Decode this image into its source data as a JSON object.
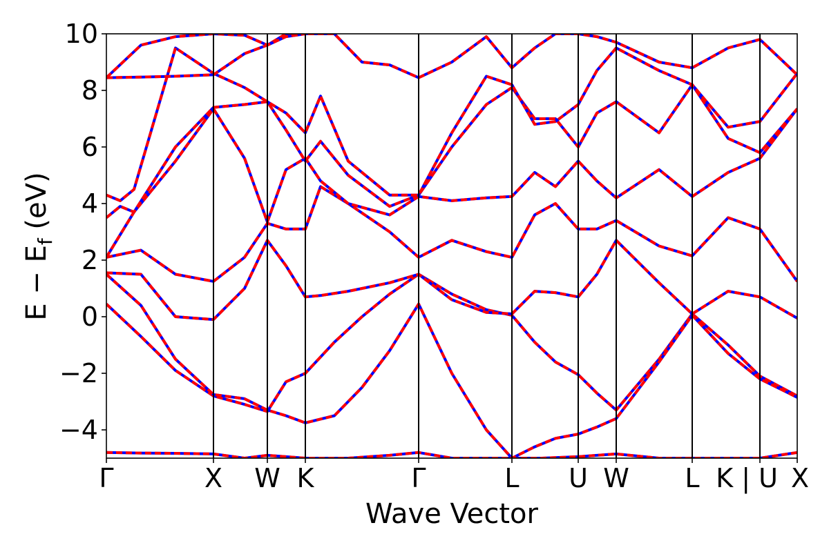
{
  "chart_data": {
    "type": "line",
    "xlabel": "Wave Vector",
    "ylabel": {
      "parts": [
        "E − E",
        "f",
        " (eV)"
      ]
    },
    "ylim": [
      -5,
      10
    ],
    "xlim": [
      0,
      1
    ],
    "grid": false,
    "legend": "none",
    "yticks": [
      {
        "value": -4,
        "label": "−4"
      },
      {
        "value": -2,
        "label": "−2"
      },
      {
        "value": 0,
        "label": "0"
      },
      {
        "value": 2,
        "label": "2"
      },
      {
        "value": 4,
        "label": "4"
      },
      {
        "value": 6,
        "label": "6"
      },
      {
        "value": 8,
        "label": "8"
      },
      {
        "value": 10,
        "label": "10"
      }
    ],
    "kpoints": [
      {
        "label": "Γ",
        "x": 0.0
      },
      {
        "label": "X",
        "x": 0.155
      },
      {
        "label": "W",
        "x": 0.233
      },
      {
        "label": "K",
        "x": 0.288
      },
      {
        "label": "Γ",
        "x": 0.452
      },
      {
        "label": "L",
        "x": 0.587
      },
      {
        "label": "U",
        "x": 0.683
      },
      {
        "label": "W",
        "x": 0.738
      },
      {
        "label": "L",
        "x": 0.848
      },
      {
        "label": "K | U",
        "x": 0.946
      },
      {
        "label": "X",
        "x": 1.0
      }
    ],
    "kpoint_lines_x": [
      0.155,
      0.233,
      0.288,
      0.452,
      0.587,
      0.683,
      0.738,
      0.848,
      0.946
    ],
    "colors": {
      "series_a": "#0000ff",
      "series_b": "#ff0000",
      "kline": "#000000"
    },
    "bands": [
      {
        "x": [
          0.0,
          0.05,
          0.1,
          0.155,
          0.2,
          0.233,
          0.26,
          0.288,
          0.35,
          0.41,
          0.452,
          0.5,
          0.55,
          0.587,
          0.63,
          0.683,
          0.71,
          0.738,
          0.8,
          0.848,
          0.9,
          0.946,
          1.0
        ],
        "y": [
          -4.8,
          -4.82,
          -4.83,
          -4.85,
          -5.0,
          -4.9,
          -4.95,
          -5.0,
          -5.0,
          -4.9,
          -4.8,
          -5.0,
          -5.0,
          -5.0,
          -5.0,
          -4.95,
          -4.9,
          -4.85,
          -5.0,
          -5.0,
          -5.0,
          -5.0,
          -4.8
        ]
      },
      {
        "x": [
          0.0,
          0.05,
          0.1,
          0.155,
          0.2,
          0.233,
          0.26,
          0.288,
          0.33,
          0.37,
          0.41,
          0.452,
          0.5,
          0.55,
          0.587,
          0.62,
          0.65,
          0.683,
          0.71,
          0.738,
          0.8,
          0.848,
          0.9,
          0.946,
          1.0
        ],
        "y": [
          0.45,
          -0.7,
          -1.9,
          -2.8,
          -3.1,
          -3.35,
          -2.3,
          -2.0,
          -0.9,
          0.0,
          0.8,
          1.5,
          0.8,
          0.25,
          0.05,
          -0.9,
          -1.6,
          -2.05,
          -2.7,
          -3.3,
          -1.5,
          0.1,
          -1.0,
          -2.1,
          -2.8
        ]
      },
      {
        "x": [
          0.0,
          0.05,
          0.1,
          0.155,
          0.2,
          0.233,
          0.26,
          0.288,
          0.33,
          0.37,
          0.41,
          0.452,
          0.5,
          0.55,
          0.587,
          0.62,
          0.65,
          0.683,
          0.71,
          0.738,
          0.8,
          0.848,
          0.9,
          0.946,
          1.0
        ],
        "y": [
          1.5,
          0.4,
          -1.5,
          -2.75,
          -2.9,
          -3.3,
          -3.5,
          -3.75,
          -3.5,
          -2.5,
          -1.2,
          0.45,
          -2.0,
          -4.0,
          -5.0,
          -4.6,
          -4.3,
          -4.15,
          -3.9,
          -3.6,
          -1.6,
          0.05,
          -1.3,
          -2.2,
          -2.85
        ]
      },
      {
        "x": [
          0.0,
          0.05,
          0.1,
          0.155,
          0.2,
          0.233,
          0.26,
          0.288,
          0.31,
          0.35,
          0.41,
          0.452,
          0.5,
          0.55,
          0.587,
          0.62,
          0.65,
          0.683,
          0.71,
          0.738,
          0.8,
          0.848,
          0.9,
          0.946,
          1.0
        ],
        "y": [
          1.55,
          1.5,
          0.0,
          -0.1,
          1.0,
          2.7,
          1.8,
          0.7,
          0.75,
          0.9,
          1.2,
          1.5,
          0.6,
          0.15,
          0.1,
          0.9,
          0.85,
          0.7,
          1.5,
          2.7,
          1.2,
          0.1,
          0.9,
          0.7,
          -0.05
        ]
      },
      {
        "x": [
          0.0,
          0.05,
          0.1,
          0.155,
          0.2,
          0.233,
          0.26,
          0.288,
          0.31,
          0.35,
          0.41,
          0.452,
          0.5,
          0.55,
          0.587,
          0.62,
          0.65,
          0.683,
          0.71,
          0.738,
          0.8,
          0.848,
          0.9,
          0.946,
          1.0
        ],
        "y": [
          2.1,
          2.35,
          1.5,
          1.25,
          2.1,
          3.3,
          3.1,
          3.1,
          4.6,
          4.0,
          3.0,
          2.1,
          2.7,
          2.3,
          2.1,
          3.6,
          4.0,
          3.1,
          3.1,
          3.4,
          2.5,
          2.15,
          3.5,
          3.1,
          1.25
        ]
      },
      {
        "x": [
          0.0,
          0.04,
          0.1,
          0.155,
          0.2,
          0.233,
          0.26,
          0.288,
          0.31,
          0.35,
          0.41,
          0.452,
          0.5,
          0.55,
          0.587,
          0.62,
          0.65,
          0.683,
          0.71,
          0.738,
          0.8,
          0.848,
          0.9,
          0.946,
          1.0
        ],
        "y": [
          2.1,
          3.7,
          5.5,
          7.35,
          5.6,
          3.35,
          5.2,
          5.6,
          4.8,
          4.0,
          3.6,
          4.25,
          4.1,
          4.2,
          4.25,
          5.1,
          4.6,
          5.5,
          4.8,
          4.2,
          5.2,
          4.25,
          5.1,
          5.6,
          7.35
        ]
      },
      {
        "x": [
          0.0,
          0.02,
          0.04,
          0.1,
          0.155,
          0.2,
          0.233,
          0.26,
          0.288,
          0.31,
          0.35,
          0.41,
          0.452,
          0.5,
          0.55,
          0.587,
          0.62,
          0.65,
          0.683,
          0.71,
          0.738,
          0.8,
          0.848,
          0.9,
          0.946,
          1.0
        ],
        "y": [
          3.5,
          3.9,
          3.7,
          6.0,
          7.4,
          7.5,
          7.6,
          6.6,
          5.5,
          6.2,
          5.0,
          3.9,
          4.3,
          6.0,
          7.5,
          8.1,
          7.0,
          7.0,
          6.0,
          7.2,
          7.6,
          6.5,
          8.2,
          6.3,
          5.8,
          7.35
        ]
      },
      {
        "x": [
          0.0,
          0.02,
          0.04,
          0.1,
          0.155,
          0.2,
          0.233,
          0.26,
          0.288,
          0.31,
          0.35,
          0.41,
          0.452,
          0.5,
          0.55,
          0.587,
          0.62,
          0.65,
          0.683,
          0.71,
          0.738,
          0.8,
          0.848,
          0.9,
          0.946,
          1.0
        ],
        "y": [
          4.3,
          4.1,
          4.5,
          9.5,
          8.6,
          8.1,
          7.6,
          7.2,
          6.5,
          7.8,
          5.5,
          4.3,
          4.3,
          6.5,
          8.5,
          8.2,
          6.8,
          6.9,
          7.5,
          8.7,
          9.5,
          8.7,
          8.2,
          6.7,
          6.9,
          8.6
        ]
      },
      {
        "x": [
          0.0,
          0.05,
          0.1,
          0.155,
          0.2,
          0.233,
          0.26,
          0.288,
          0.33,
          0.37,
          0.41,
          0.452,
          0.5,
          0.55,
          0.587,
          0.62,
          0.65,
          0.683,
          0.71,
          0.738,
          0.8,
          0.848,
          0.9,
          0.946,
          1.0
        ],
        "y": [
          8.45,
          8.47,
          8.5,
          8.55,
          9.3,
          9.6,
          10.0,
          10.0,
          10.0,
          9.0,
          8.9,
          8.45,
          9.0,
          9.9,
          8.8,
          9.5,
          10.0,
          10.0,
          9.9,
          9.7,
          9.0,
          8.8,
          9.5,
          9.8,
          8.55
        ]
      },
      {
        "x": [
          0.0,
          0.05,
          0.1,
          0.155,
          0.2,
          0.233,
          0.26,
          0.288
        ],
        "y": [
          8.45,
          9.6,
          9.9,
          10.0,
          9.95,
          9.6,
          9.9,
          10.0
        ]
      }
    ]
  }
}
